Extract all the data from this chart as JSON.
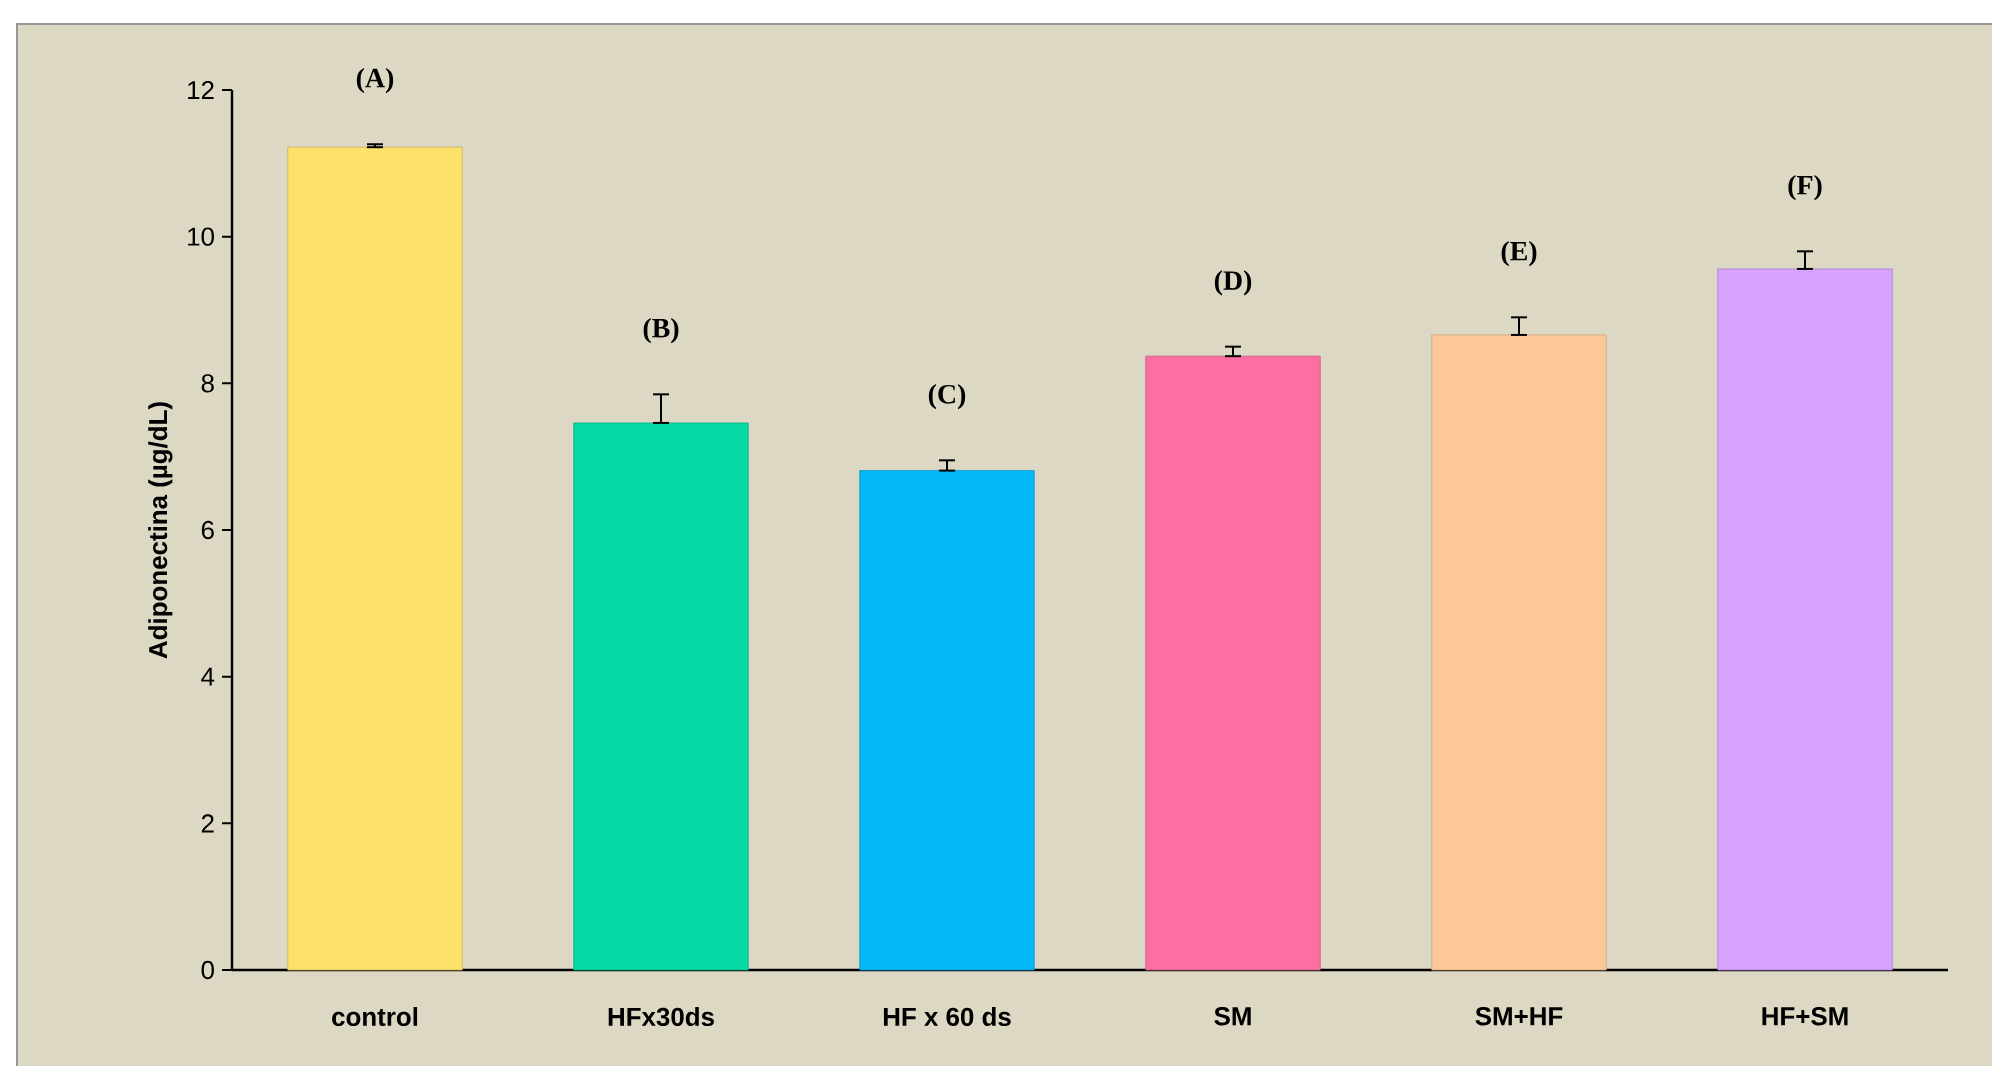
{
  "chart_data": {
    "type": "bar",
    "ylabel": "Adiponectina (µg/dL)",
    "categories": [
      "control",
      "HFx30ds",
      "HF x 60 ds",
      "SM",
      "SM+HF",
      "HF+SM"
    ],
    "values": [
      11.22,
      7.46,
      6.81,
      8.37,
      8.66,
      9.56
    ],
    "errors": [
      [
        11.22,
        11.26
      ],
      [
        7.46,
        7.85
      ],
      [
        6.81,
        6.95
      ],
      [
        8.37,
        8.5
      ],
      [
        8.66,
        8.9
      ],
      [
        9.56,
        9.8
      ]
    ],
    "colors": [
      "#fce26a",
      "#05d9a5",
      "#05b9f9",
      "#fd6ea2",
      "#fdc99a",
      "#d6a2fd"
    ],
    "ylim": [
      0,
      12
    ],
    "yticks": [
      0,
      2,
      4,
      6,
      8,
      10,
      12
    ],
    "annotations": [
      "(A)",
      "(B)",
      "(C)",
      "(D)",
      "(E)",
      "(F)"
    ]
  }
}
